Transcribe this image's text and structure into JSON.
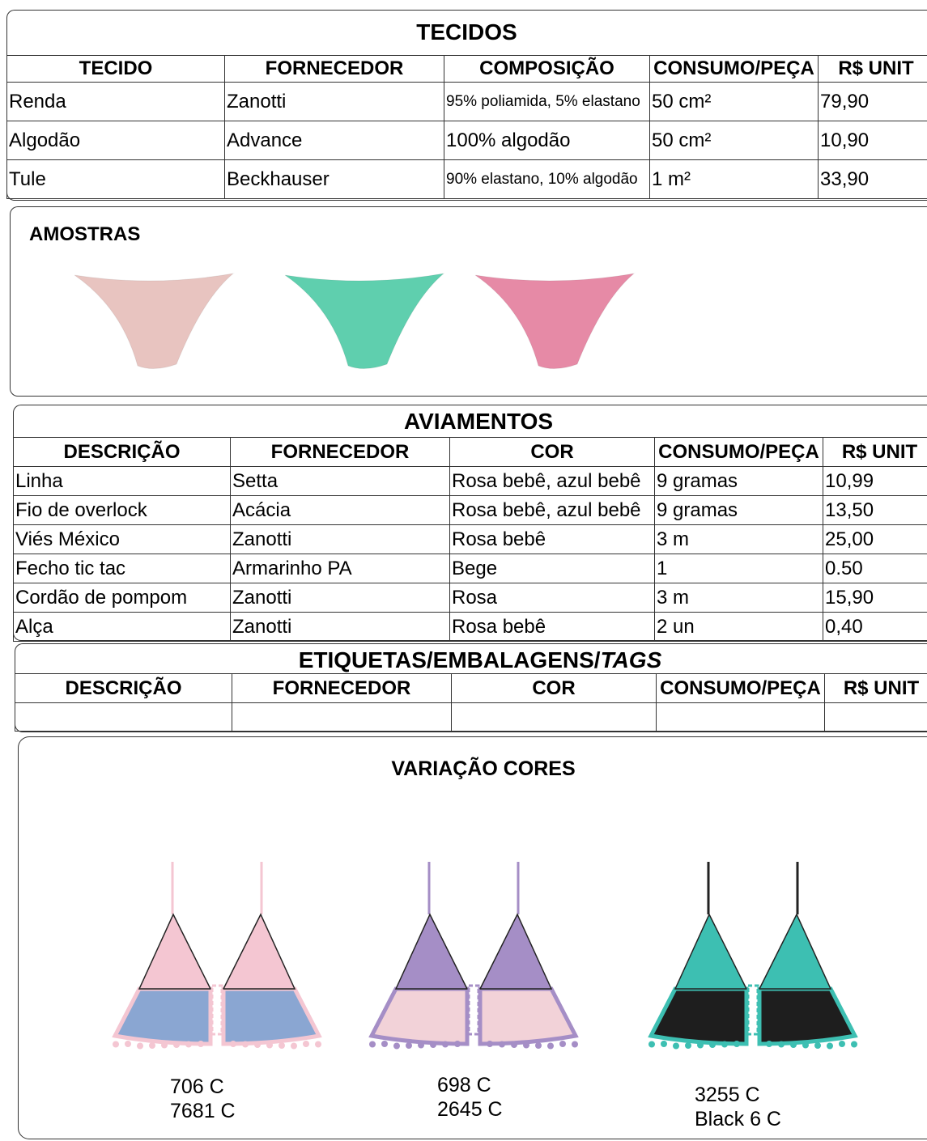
{
  "tecidos": {
    "title": "TECIDOS",
    "headers": [
      "TECIDO",
      "FORNECEDOR",
      "COMPOSIÇÃO",
      "CONSUMO/PEÇA",
      "R$ UNIT"
    ],
    "rows": [
      [
        "Renda",
        "Zanotti",
        "95% poliamida, 5% elastano",
        "50 cm²",
        "79,90"
      ],
      [
        "Algodão",
        "Advance",
        "100% algodão",
        "50 cm²",
        "10,90"
      ],
      [
        "Tule",
        "Beckhauser",
        "90% elastano, 10% algodão",
        "1 m²",
        "33,90"
      ]
    ]
  },
  "amostras": {
    "title": "AMOSTRAS",
    "samples": [
      {
        "color": "#e8c4c0"
      },
      {
        "color": "#5fcfae"
      },
      {
        "color": "#e68aa6"
      }
    ]
  },
  "aviamentos": {
    "title": "AVIAMENTOS",
    "headers": [
      "DESCRIÇÃO",
      "FORNECEDOR",
      "COR",
      "CONSUMO/PEÇA",
      "R$ UNIT"
    ],
    "rows": [
      [
        "Linha",
        "Setta",
        "Rosa bebê, azul bebê",
        "9 gramas",
        "10,99"
      ],
      [
        "Fio de overlock",
        "Acácia",
        "Rosa bebê, azul bebê",
        "9 gramas",
        "13,50"
      ],
      [
        "Viés México",
        "Zanotti",
        "Rosa bebê",
        "3 m",
        "25,00"
      ],
      [
        "Fecho tic tac",
        "Armarinho PA",
        "Bege",
        "1",
        "0.50"
      ],
      [
        "Cordão de pompom",
        "Zanotti",
        "Rosa",
        "3 m",
        "15,90"
      ],
      [
        "Alça",
        "Zanotti",
        "Rosa bebê",
        "2 un",
        "0,40"
      ]
    ]
  },
  "etiquetas": {
    "title": "ETIQUETAS/EMBALAGENS/",
    "title_italic": "TAGS",
    "headers": [
      "DESCRIÇÃO",
      "FORNECEDOR",
      "COR",
      "CONSUMO/PEÇA",
      "R$ UNIT"
    ]
  },
  "variacao": {
    "title": "VARIAÇÃO CORES",
    "variants": [
      {
        "codes": [
          "706 C",
          "7681 C"
        ],
        "top": "#f4c6d2",
        "bottom": "#8aa6d2",
        "trim": "#f4c6d2"
      },
      {
        "codes": [
          "698 C",
          "2645 C"
        ],
        "top": "#a58ec6",
        "bottom": "#f2d2d8",
        "trim": "#a58ec6"
      },
      {
        "codes": [
          "3255 C",
          "Black 6 C"
        ],
        "top": "#3dbfb2",
        "bottom": "#1e1e1e",
        "trim": "#3dbfb2"
      }
    ]
  }
}
